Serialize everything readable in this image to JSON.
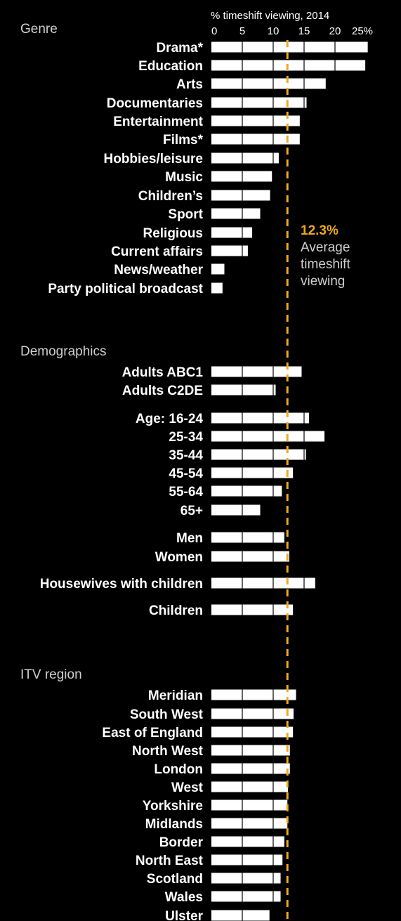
{
  "chart_data": {
    "type": "bar",
    "orientation": "horizontal",
    "xlabel": "% timeshift viewing, 2014",
    "xlim": [
      0,
      25
    ],
    "x_ticks": [
      "0",
      "5",
      "10",
      "15",
      "20",
      "25%"
    ],
    "average": {
      "value": 12.3,
      "value_label": "12.3%",
      "text": [
        "Average",
        "timeshift",
        "viewing"
      ],
      "color": "#f0a81c"
    },
    "bar_color": "#ffffff",
    "background": "#000000",
    "sections": [
      {
        "title": "Genre",
        "categories": [
          "Drama*",
          "Education",
          "Arts",
          "Documentaries",
          "Entertainment",
          "Films*",
          "Hobbies/leisure",
          "Music",
          "Children’s",
          "Sport",
          "Religious",
          "Current affairs",
          "News/weather",
          "Party political broadcast"
        ],
        "values": [
          25.3,
          24.9,
          18.5,
          15.4,
          14.3,
          14.3,
          10.9,
          9.8,
          9.5,
          7.9,
          6.6,
          5.9,
          2.1,
          1.8
        ]
      },
      {
        "title": "Demographics",
        "categories": [
          "Adults ABC1",
          "Adults C2DE",
          "Age: 16-24",
          "25-34",
          "35-44",
          "45-54",
          "55-64",
          "65+",
          "Men",
          "Women",
          "Housewives with children",
          "Children"
        ],
        "values": [
          14.6,
          10.4,
          15.8,
          18.3,
          15.3,
          13.2,
          11.4,
          7.9,
          11.8,
          12.6,
          16.8,
          13.2
        ]
      },
      {
        "title": "ITV region",
        "categories": [
          "Meridian",
          "South West",
          "East of England",
          "North West",
          "London",
          "West",
          "Yorkshire",
          "Midlands",
          "Border",
          "North East",
          "Scotland",
          "Wales",
          "Ulster"
        ],
        "values": [
          13.7,
          13.3,
          13.2,
          12.7,
          12.7,
          12.4,
          12.3,
          12.3,
          11.8,
          11.5,
          11.2,
          11.2,
          9.4
        ]
      }
    ]
  }
}
